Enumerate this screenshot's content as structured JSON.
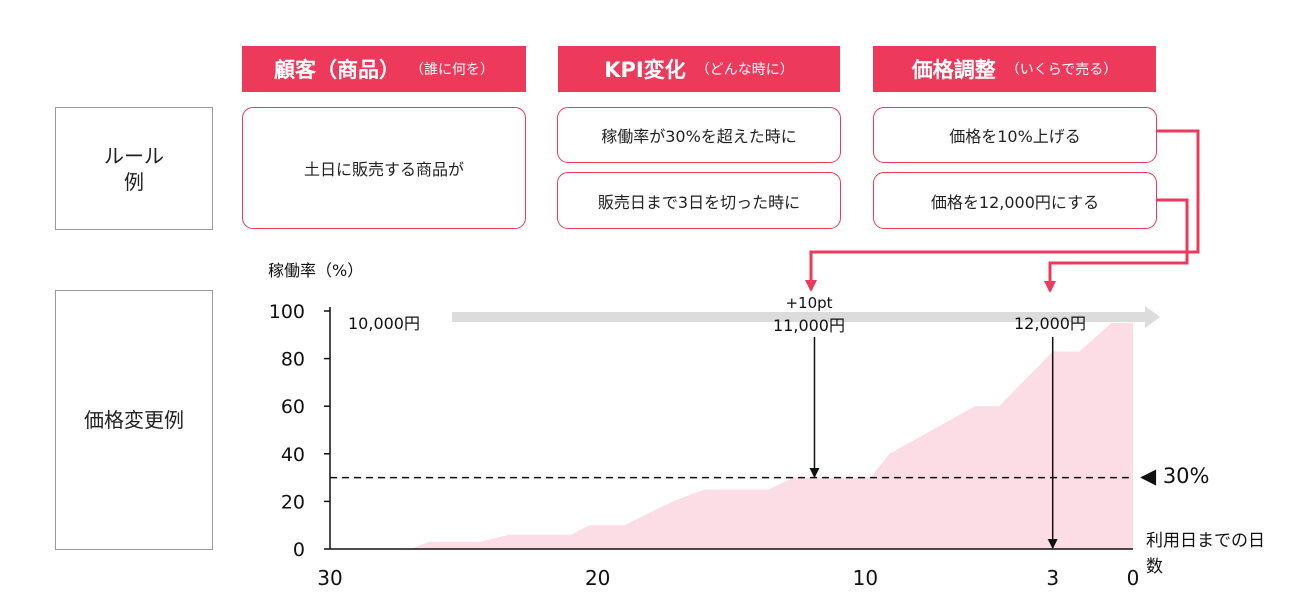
{
  "headers": [
    {
      "main": "顧客（商品）",
      "sub": "（誰に何を）"
    },
    {
      "main": "KPI変化",
      "sub": "（どんな時に）"
    },
    {
      "main": "価格調整",
      "sub": "（いくらで売る）"
    }
  ],
  "row_labels": {
    "rule": "ルール\n例",
    "price_change": "価格変更例"
  },
  "rules": {
    "customer": "土日に販売する商品が",
    "kpi": [
      "稼働率が30%を超えた時に",
      "販売日まで3日を切った時に"
    ],
    "price": [
      "価格を10%上げる",
      "価格を12,000円にする"
    ]
  },
  "colors": {
    "accent": "#ee3a5a",
    "area": "#fcdde6",
    "arrow_bar": "#dcdcdc"
  },
  "chart_data": {
    "type": "area",
    "ylabel": "稼働率（%）",
    "xlabel": "利用日までの日数",
    "ylim": [
      0,
      100
    ],
    "xlim": [
      30,
      0
    ],
    "yticks": [
      0,
      20,
      40,
      60,
      80,
      100
    ],
    "xticks": [
      30,
      20,
      10,
      3,
      0
    ],
    "x": [
      30,
      27,
      26.3,
      24.4,
      23.3,
      21,
      20.3,
      19,
      17.2,
      16,
      13.6,
      12.7,
      11.9,
      9.8,
      9.1,
      5.9,
      5,
      3,
      2,
      0.8,
      0
    ],
    "y": [
      0,
      0,
      3,
      3,
      6,
      6,
      10,
      10,
      20,
      25,
      25,
      30,
      30,
      30,
      40,
      60,
      60,
      83,
      83,
      95,
      95
    ],
    "threshold": {
      "value": 30,
      "label": "◀ 30%"
    },
    "price_labels": [
      {
        "x": 29,
        "text": "10,000円",
        "note": ""
      },
      {
        "x": 11.9,
        "text": "11,000円",
        "note": "+10pt"
      },
      {
        "x": 3,
        "text": "12,000円",
        "note": ""
      }
    ]
  }
}
